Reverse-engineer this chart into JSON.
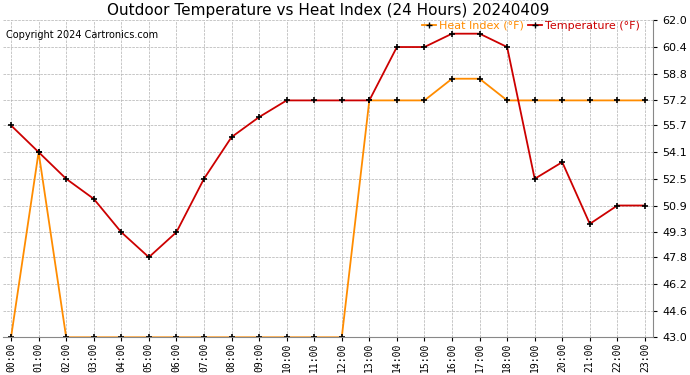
{
  "title": "Outdoor Temperature vs Heat Index (24 Hours) 20240409",
  "copyright": "Copyright 2024 Cartronics.com",
  "legend_heat": "Heat Index (°F)",
  "legend_temp": "Temperature (°F)",
  "hours": [
    "00:00",
    "01:00",
    "02:00",
    "03:00",
    "04:00",
    "05:00",
    "06:00",
    "07:00",
    "08:00",
    "09:00",
    "10:00",
    "11:00",
    "12:00",
    "13:00",
    "14:00",
    "15:00",
    "16:00",
    "17:00",
    "18:00",
    "19:00",
    "20:00",
    "21:00",
    "22:00",
    "23:00"
  ],
  "temperature": [
    55.7,
    54.1,
    52.5,
    51.3,
    49.3,
    47.8,
    49.3,
    52.5,
    55.0,
    56.2,
    57.2,
    57.2,
    57.2,
    57.2,
    60.4,
    60.4,
    61.2,
    61.2,
    60.4,
    52.5,
    53.5,
    49.8,
    50.9,
    50.9
  ],
  "heat_index": [
    43.0,
    54.1,
    43.0,
    43.0,
    43.0,
    43.0,
    43.0,
    43.0,
    43.0,
    43.0,
    43.0,
    43.0,
    43.0,
    57.2,
    57.2,
    57.2,
    58.5,
    58.5,
    57.2,
    57.2,
    57.2,
    57.2,
    57.2,
    57.2
  ],
  "ylim": [
    43.0,
    62.0
  ],
  "yticks": [
    43.0,
    44.6,
    46.2,
    47.8,
    49.3,
    50.9,
    52.5,
    54.1,
    55.7,
    57.2,
    58.8,
    60.4,
    62.0
  ],
  "temp_color": "#cc0000",
  "heat_color": "#ff8c00",
  "bg_color": "#ffffff",
  "grid_color": "#b0b0b0",
  "title_fontsize": 11,
  "copyright_fontsize": 7,
  "legend_fontsize": 8,
  "marker_color": "#000000"
}
